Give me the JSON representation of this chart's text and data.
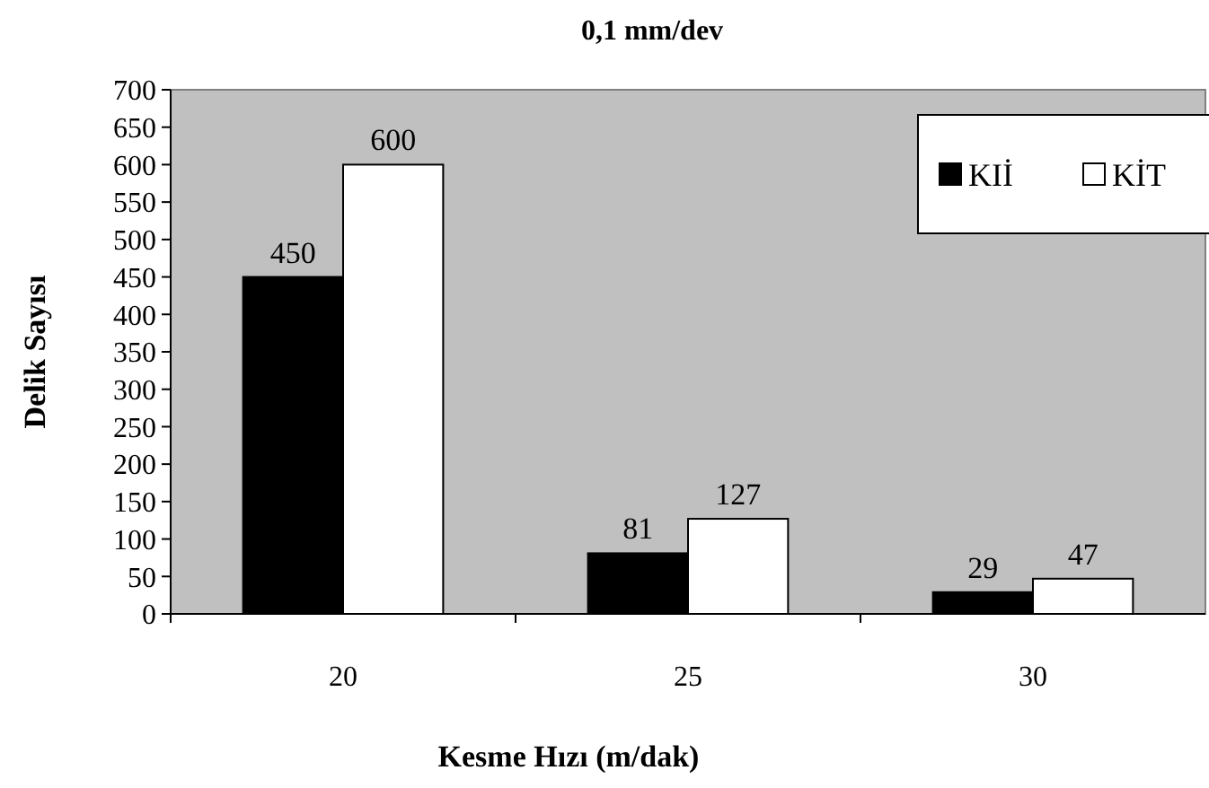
{
  "chart_data": {
    "type": "bar",
    "title": "0,1 mm/dev",
    "xlabel": "Kesme Hızı (m/dak)",
    "ylabel": "Delik Sayısı",
    "categories": [
      "20",
      "25",
      "30"
    ],
    "series": [
      {
        "name": "KIİ",
        "color": "#000000",
        "values": [
          450,
          81,
          29
        ]
      },
      {
        "name": "KİT",
        "color": "#ffffff",
        "values": [
          600,
          127,
          47
        ]
      }
    ],
    "ylim": [
      0,
      700
    ],
    "yticks": [
      0,
      50,
      100,
      150,
      200,
      250,
      300,
      350,
      400,
      450,
      500,
      550,
      600,
      650,
      700
    ],
    "data_labels": true,
    "legend": "top right",
    "grid": false
  }
}
